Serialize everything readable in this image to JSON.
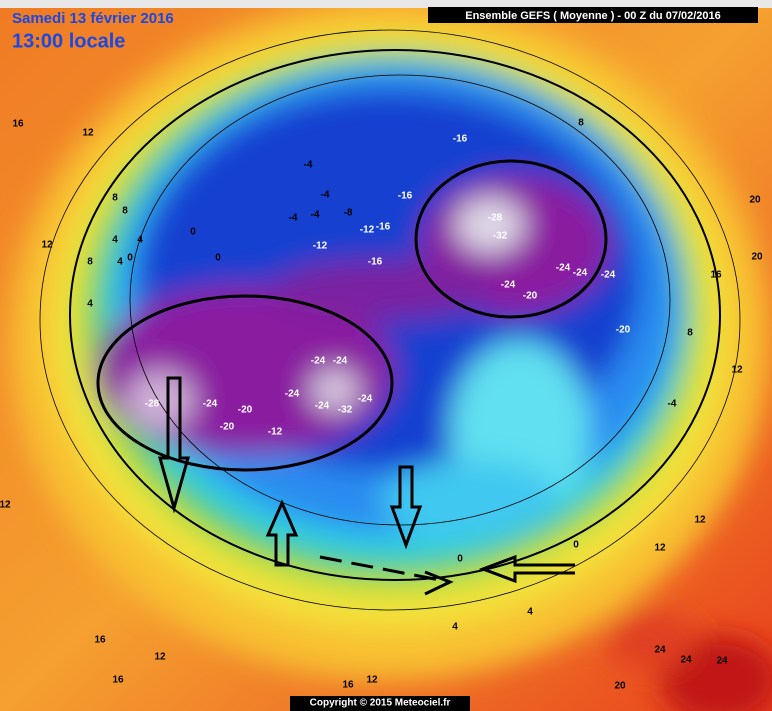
{
  "header": {
    "date": "Samedi 13 février 2016",
    "time": "13:00 locale",
    "model": "Ensemble GEFS  ( Moyenne )  -  00 Z du 07/02/2016"
  },
  "footer": {
    "copyright": "Copyright © 2015 Meteociel.fr"
  },
  "contour_labels": [
    16,
    12,
    8,
    8,
    12,
    4,
    4,
    8,
    4,
    0,
    0,
    0,
    4,
    -4,
    -4,
    -4,
    -4,
    -8,
    -12,
    -16,
    -12,
    -16,
    -16,
    -16,
    -28,
    -32,
    -24,
    -24,
    -24,
    -24,
    -20,
    -20,
    -24,
    -24,
    -28,
    -24,
    -20,
    -20,
    -24,
    -24,
    -32,
    -24,
    -12,
    -4,
    8,
    12,
    12,
    12,
    0,
    0,
    4,
    4,
    16,
    12,
    16,
    12,
    16,
    20,
    24,
    24,
    24,
    20,
    20,
    16,
    8,
    12
  ]
}
